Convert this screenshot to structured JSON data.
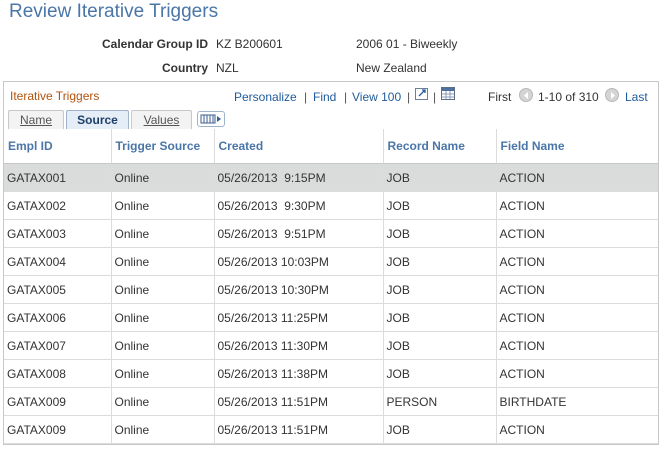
{
  "page": {
    "title": "Review Iterative Triggers"
  },
  "header_fields": {
    "calendar_group_label": "Calendar Group ID",
    "calendar_group_id": "KZ B200601",
    "calendar_group_desc": "2006 01 - Biweekly",
    "country_label": "Country",
    "country_code": "NZL",
    "country_name": "New Zealand"
  },
  "grid": {
    "title": "Iterative Triggers",
    "personalize": "Personalize",
    "find": "Find",
    "view_all": "View 100",
    "first": "First",
    "range": "1-10 of 310",
    "last": "Last",
    "tabs": [
      {
        "label": "Name"
      },
      {
        "label": "Source"
      },
      {
        "label": "Values"
      }
    ],
    "columns": [
      "Empl ID",
      "Trigger Source",
      "Created",
      "Record Name",
      "Field Name"
    ],
    "rows": [
      [
        "GATAX001",
        "Online",
        "05/26/2013  9:15PM",
        "JOB",
        "ACTION"
      ],
      [
        "GATAX002",
        "Online",
        "05/26/2013  9:30PM",
        "JOB",
        "ACTION"
      ],
      [
        "GATAX003",
        "Online",
        "05/26/2013  9:51PM",
        "JOB",
        "ACTION"
      ],
      [
        "GATAX004",
        "Online",
        "05/26/2013 10:03PM",
        "JOB",
        "ACTION"
      ],
      [
        "GATAX005",
        "Online",
        "05/26/2013 10:30PM",
        "JOB",
        "ACTION"
      ],
      [
        "GATAX006",
        "Online",
        "05/26/2013 11:25PM",
        "JOB",
        "ACTION"
      ],
      [
        "GATAX007",
        "Online",
        "05/26/2013 11:30PM",
        "JOB",
        "ACTION"
      ],
      [
        "GATAX008",
        "Online",
        "05/26/2013 11:38PM",
        "JOB",
        "ACTION"
      ],
      [
        "GATAX009",
        "Online",
        "05/26/2013 11:51PM",
        "PERSON",
        "BIRTHDATE"
      ],
      [
        "GATAX009",
        "Online",
        "05/26/2013 11:51PM",
        "JOB",
        "ACTION"
      ]
    ]
  },
  "icons": {
    "zoom": "zoom-grid-icon",
    "download": "download-excel-icon",
    "prev": "previous-row-icon",
    "next": "next-row-icon",
    "show_all_columns": "show-all-columns-icon"
  }
}
